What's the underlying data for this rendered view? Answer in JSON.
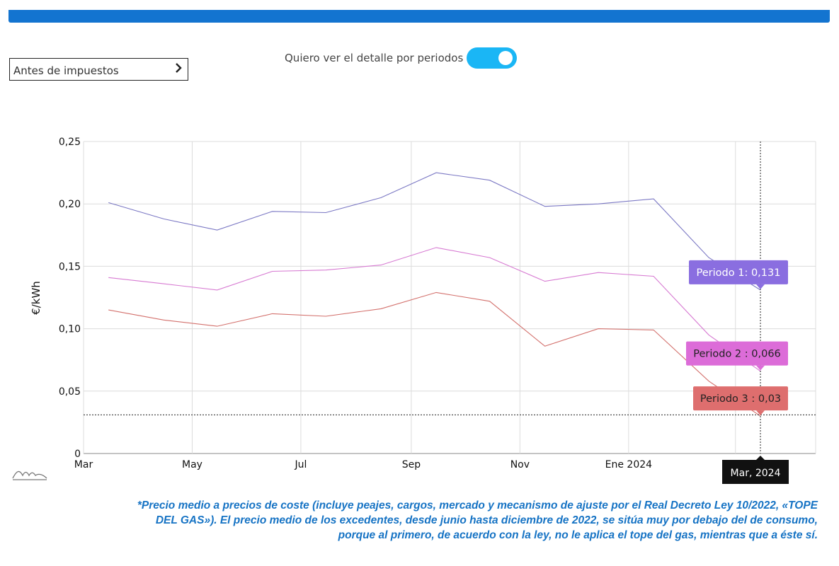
{
  "controls": {
    "tax_select_label": "Antes de impuestos",
    "toggle_label": "Quiero ver el detalle por periodos",
    "toggle_on": true
  },
  "colors": {
    "top_bar": "#1374d0",
    "toggle": "#1ab6f5",
    "footnote": "#1673c4"
  },
  "chart_data": {
    "type": "line",
    "ylabel": "€/kWh",
    "xlabel": "",
    "ylim": [
      0,
      0.25
    ],
    "x_range": [
      "2023-03-01",
      "2024-04-15"
    ],
    "y_ticks": [
      "0",
      "0,05",
      "0,10",
      "0,15",
      "0,20",
      "0,25"
    ],
    "x_ticks": [
      {
        "date": "2023-03-01",
        "label": "Mar"
      },
      {
        "date": "2023-05-01",
        "label": "May"
      },
      {
        "date": "2023-07-01",
        "label": "Jul"
      },
      {
        "date": "2023-09-01",
        "label": "Sep"
      },
      {
        "date": "2023-11-01",
        "label": "Nov"
      },
      {
        "date": "2024-01-01",
        "label": "Ene 2024"
      },
      {
        "date": "2024-03-01",
        "label": "Mar"
      }
    ],
    "x": [
      "2023-03-15",
      "2023-04-15",
      "2023-05-15",
      "2023-06-15",
      "2023-07-15",
      "2023-08-15",
      "2023-09-15",
      "2023-10-15",
      "2023-11-15",
      "2023-12-15",
      "2024-01-15",
      "2024-02-15",
      "2024-03-15"
    ],
    "series": [
      {
        "name": "Periodo 1",
        "color": "#7b78c4",
        "values": [
          0.201,
          0.188,
          0.179,
          0.194,
          0.193,
          0.205,
          0.225,
          0.219,
          0.198,
          0.2,
          0.204,
          0.157,
          0.131
        ]
      },
      {
        "name": "Periodo 2",
        "color": "#d77ad2",
        "values": [
          0.141,
          0.136,
          0.131,
          0.146,
          0.147,
          0.151,
          0.165,
          0.157,
          0.138,
          0.145,
          0.142,
          0.095,
          0.066
        ]
      },
      {
        "name": "Periodo 3",
        "color": "#d3706c",
        "values": [
          0.115,
          0.107,
          0.102,
          0.112,
          0.11,
          0.116,
          0.129,
          0.122,
          0.086,
          0.1,
          0.099,
          0.058,
          0.03
        ]
      }
    ],
    "tooltip": {
      "date": "2024-03-15",
      "x_label": "Mar, 2024",
      "entries": [
        {
          "text": "Periodo 1: 0,131",
          "bg": "#8a6ee0",
          "fg": "#ffffff"
        },
        {
          "text": "Periodo 2 : 0,066",
          "bg": "#dc6cd8",
          "fg": "#222222"
        },
        {
          "text": "Periodo 3 : 0,03",
          "bg": "#de6e6e",
          "fg": "#222222"
        }
      ],
      "crosshair_value": 0.031
    },
    "grid": true
  },
  "footnote": {
    "lines": [
      "*Precio medio a precios de coste (incluye peajes, cargos, mercado y mecanismo de ajuste por el Real Decreto Ley 10/2022, «TOPE",
      "DEL GAS»). El precio medio de los excedentes, desde junio hasta diciembre de 2022, se sitúa muy por debajo del de consumo,",
      "porque al primero, de acuerdo con la ley, no le aplica el tope del gas, mientras que a éste sí."
    ]
  }
}
